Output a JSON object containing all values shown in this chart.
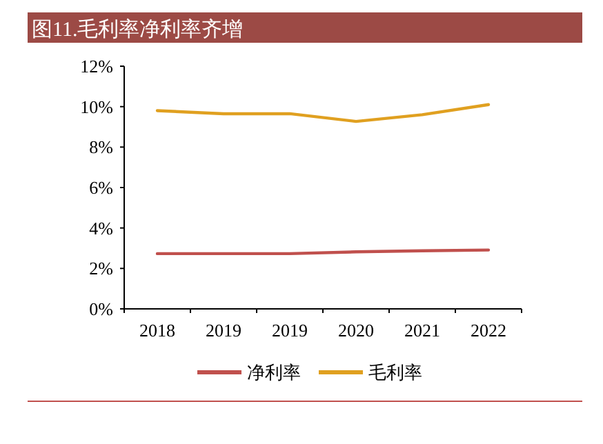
{
  "chart_data": {
    "type": "line",
    "title": "图11.毛利率净利率齐增",
    "categories": [
      "2018",
      "2019",
      "2019",
      "2020",
      "2021",
      "2022"
    ],
    "series": [
      {
        "name": "净利率",
        "color": "#c0504d",
        "values": [
          2.73,
          2.73,
          2.73,
          2.82,
          2.87,
          2.91
        ]
      },
      {
        "name": "毛利率",
        "color": "#e0a020",
        "values": [
          9.8,
          9.65,
          9.65,
          9.27,
          9.6,
          10.1
        ]
      }
    ],
    "ylim": [
      0,
      12
    ],
    "yticks": [
      {
        "value": 0,
        "label": "0%"
      },
      {
        "value": 2,
        "label": "2%"
      },
      {
        "value": 4,
        "label": "4%"
      },
      {
        "value": 6,
        "label": "6%"
      },
      {
        "value": 8,
        "label": "8%"
      },
      {
        "value": 10,
        "label": "10%"
      },
      {
        "value": 12,
        "label": "12%"
      }
    ],
    "legend": "bottom",
    "grid": false,
    "marker": "none",
    "line_style": "solid"
  }
}
